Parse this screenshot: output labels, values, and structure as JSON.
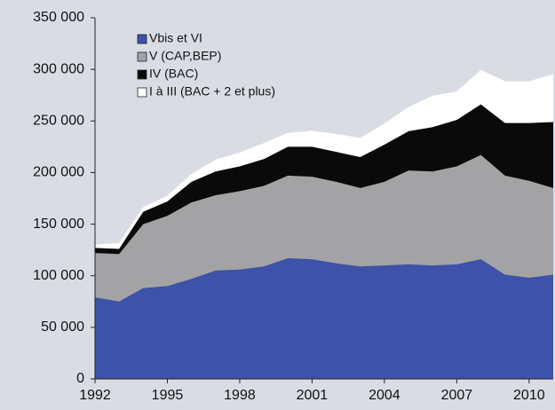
{
  "chart_data": {
    "type": "stacked_area",
    "x": [
      1992,
      1993,
      1994,
      1995,
      1996,
      1997,
      1998,
      1999,
      2000,
      2001,
      2002,
      2003,
      2004,
      2005,
      2006,
      2007,
      2008,
      2009,
      2010,
      2011
    ],
    "series": [
      {
        "name": "Vbis et VI",
        "color": "#3d52a8",
        "values": [
          79000,
          75000,
          88000,
          90000,
          97000,
          105000,
          106000,
          109000,
          117000,
          116000,
          112000,
          109000,
          110000,
          111000,
          110000,
          111000,
          116000,
          101000,
          98000,
          101000
        ]
      },
      {
        "name": "V (CAP,BEP)",
        "color": "#a3a3a5",
        "values": [
          43000,
          46000,
          62000,
          68000,
          74000,
          73000,
          76000,
          78000,
          80000,
          80000,
          79000,
          76000,
          81000,
          91000,
          91000,
          95000,
          101000,
          96000,
          94000,
          84000
        ]
      },
      {
        "name": "IV (BAC)",
        "color": "#0a0a0a",
        "values": [
          5000,
          5000,
          12000,
          14000,
          20000,
          23000,
          24000,
          26000,
          28000,
          29000,
          29000,
          30000,
          36000,
          38000,
          43000,
          45000,
          49000,
          51000,
          56000,
          64000
        ]
      },
      {
        "name": "I à III (BAC + 2 et plus)",
        "color": "#ffffff",
        "values": [
          3000,
          5000,
          4000,
          5000,
          7000,
          11000,
          13000,
          15000,
          13000,
          15000,
          17000,
          18000,
          20000,
          23000,
          30000,
          27000,
          33000,
          40000,
          40000,
          46000
        ]
      }
    ],
    "xlim": [
      1992,
      2011
    ],
    "xticks": [
      1992,
      1995,
      1998,
      2001,
      2004,
      2007,
      2010
    ],
    "ylim": [
      0,
      350000
    ],
    "yticks": [
      0,
      {
        "value": 50000,
        "label": "50 000"
      },
      {
        "value": 100000,
        "label": "100 000"
      },
      {
        "value": 150000,
        "label": "150 000"
      },
      {
        "value": 200000,
        "label": "200 000"
      },
      {
        "value": 250000,
        "label": "250 000"
      },
      {
        "value": 300000,
        "label": "300 000"
      },
      {
        "value": 350000,
        "label": "350 000"
      }
    ],
    "legend": "upper left"
  }
}
